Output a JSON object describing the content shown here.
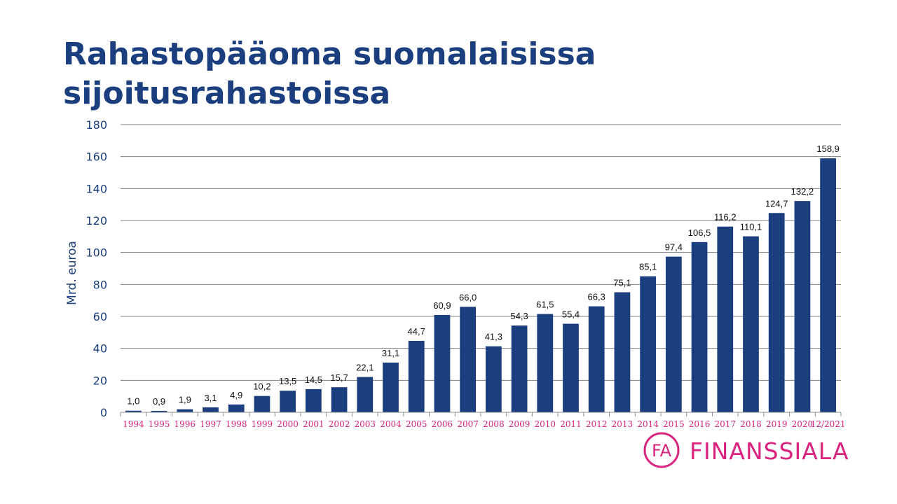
{
  "page": {
    "title_line1": "Rahastopääoma suomalaisissa",
    "title_line2": "sijoitusrahastoissa"
  },
  "logo": {
    "monogram": "FA",
    "name": "FINANSSIALA"
  },
  "colors": {
    "bar": "#1b3f7e",
    "title": "#1b3f7e",
    "x_tick": "#d9237e",
    "grid": "#7f7f7f",
    "brand": "#d9237e"
  },
  "chart_data": {
    "type": "bar",
    "title": "Rahastopääoma suomalaisissa sijoitusrahastoissa",
    "ylabel": "Mrd. euroa",
    "xlabel": "",
    "ylim": [
      0,
      180
    ],
    "yticks": [
      0,
      20,
      40,
      60,
      80,
      100,
      120,
      140,
      160,
      180
    ],
    "grid": true,
    "categories": [
      "1994",
      "1995",
      "1996",
      "1997",
      "1998",
      "1999",
      "2000",
      "2001",
      "2002",
      "2003",
      "2004",
      "2005",
      "2006",
      "2007",
      "2008",
      "2009",
      "2010",
      "2011",
      "2012",
      "2013",
      "2014",
      "2015",
      "2016",
      "2017",
      "2018",
      "2019",
      "2020",
      "12/2021"
    ],
    "values": [
      1.0,
      0.9,
      1.9,
      3.1,
      4.9,
      10.2,
      13.5,
      14.5,
      15.7,
      22.1,
      31.1,
      44.7,
      60.9,
      66.0,
      41.3,
      54.3,
      61.5,
      55.4,
      66.3,
      75.1,
      85.1,
      97.4,
      106.5,
      116.2,
      110.1,
      124.7,
      132.2,
      158.9
    ],
    "data_labels": [
      "1,0",
      "0,9",
      "1,9",
      "3,1",
      "4,9",
      "10,2",
      "13,5",
      "14,5",
      "15,7",
      "22,1",
      "31,1",
      "44,7",
      "60,9",
      "66,0",
      "41,3",
      "54,3",
      "61,5",
      "55,4",
      "66,3",
      "75,1",
      "85,1",
      "97,4",
      "106,5",
      "116,2",
      "110,1",
      "124,7",
      "132,2",
      "158,9"
    ]
  }
}
